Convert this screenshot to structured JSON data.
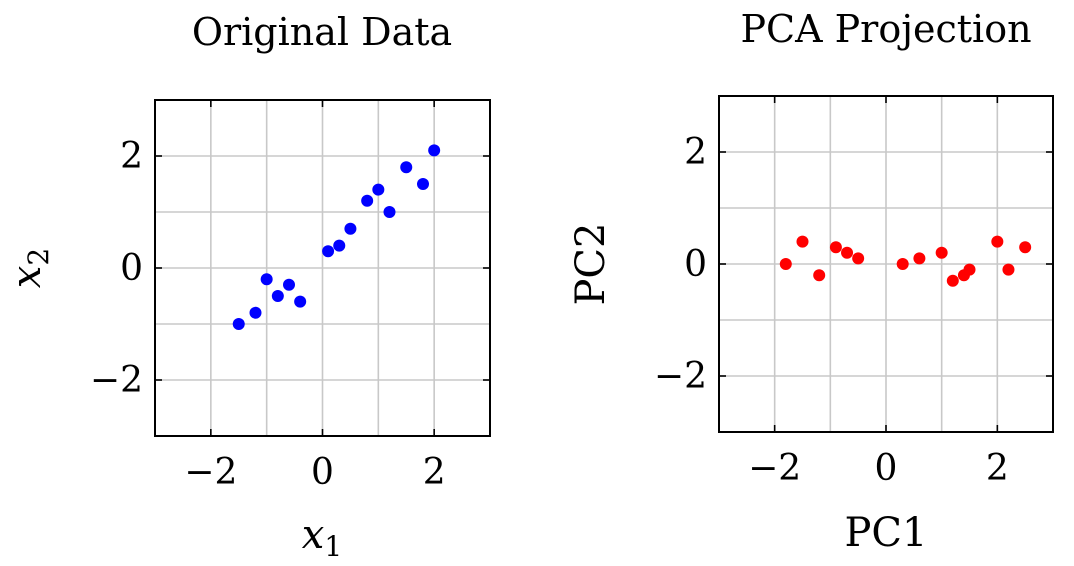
{
  "chart_data": [
    {
      "type": "scatter",
      "title": "Original Data",
      "xlabel": "x",
      "xlabel_sub": "1",
      "ylabel": "x",
      "ylabel_sub": "2",
      "xlim": [
        -3,
        3
      ],
      "ylim": [
        -3,
        3
      ],
      "xticks": [
        -2,
        0,
        2
      ],
      "yticks": [
        -2,
        0,
        2
      ],
      "xtick_labels": [
        "−2",
        "0",
        "2"
      ],
      "ytick_labels": [
        "−2",
        "0",
        "2"
      ],
      "grid": true,
      "color": "#0000ff",
      "points": [
        {
          "x": -1.5,
          "y": -1.0
        },
        {
          "x": -1.2,
          "y": -0.8
        },
        {
          "x": -1.0,
          "y": -0.2
        },
        {
          "x": -0.8,
          "y": -0.5
        },
        {
          "x": -0.6,
          "y": -0.3
        },
        {
          "x": -0.4,
          "y": -0.6
        },
        {
          "x": 0.1,
          "y": 0.3
        },
        {
          "x": 0.3,
          "y": 0.4
        },
        {
          "x": 0.5,
          "y": 0.7
        },
        {
          "x": 0.8,
          "y": 1.2
        },
        {
          "x": 1.0,
          "y": 1.4
        },
        {
          "x": 1.2,
          "y": 1.0
        },
        {
          "x": 1.5,
          "y": 1.8
        },
        {
          "x": 1.8,
          "y": 1.5
        },
        {
          "x": 2.0,
          "y": 2.1
        }
      ]
    },
    {
      "type": "scatter",
      "title": "PCA Projection",
      "xlabel": "PC1",
      "ylabel": "PC2",
      "xlim": [
        -3,
        3
      ],
      "ylim": [
        -3,
        3
      ],
      "xticks": [
        -2,
        0,
        2
      ],
      "yticks": [
        -2,
        0,
        2
      ],
      "xtick_labels": [
        "−2",
        "0",
        "2"
      ],
      "ytick_labels": [
        "−2",
        "0",
        "2"
      ],
      "grid": true,
      "color": "#ff0000",
      "points": [
        {
          "x": -1.8,
          "y": 0.0
        },
        {
          "x": -1.5,
          "y": 0.4
        },
        {
          "x": -1.2,
          "y": -0.2
        },
        {
          "x": -0.9,
          "y": 0.3
        },
        {
          "x": -0.7,
          "y": 0.2
        },
        {
          "x": -0.5,
          "y": 0.1
        },
        {
          "x": 0.3,
          "y": 0.0
        },
        {
          "x": 0.6,
          "y": 0.1
        },
        {
          "x": 1.0,
          "y": 0.2
        },
        {
          "x": 1.2,
          "y": -0.3
        },
        {
          "x": 1.4,
          "y": -0.2
        },
        {
          "x": 1.5,
          "y": -0.1
        },
        {
          "x": 2.0,
          "y": 0.4
        },
        {
          "x": 2.2,
          "y": -0.1
        },
        {
          "x": 2.5,
          "y": 0.3
        }
      ]
    }
  ]
}
